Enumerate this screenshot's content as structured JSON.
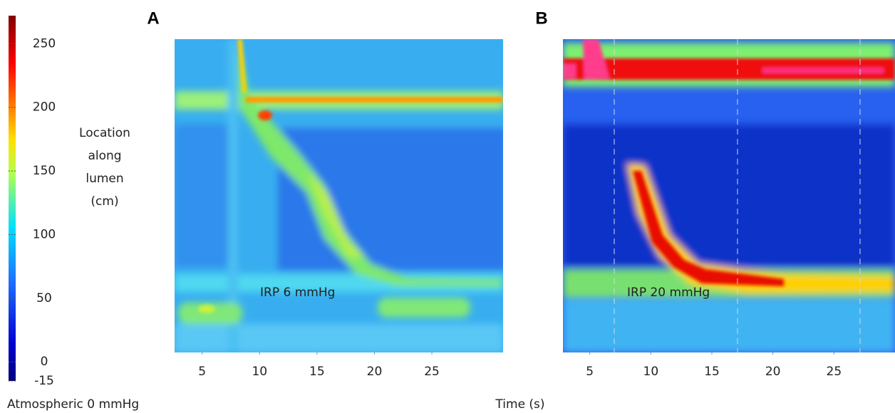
{
  "colorbar": {
    "title_lines": [
      "Location",
      "along",
      "lumen",
      "(cm)"
    ],
    "ticks": [
      -15,
      0,
      50,
      100,
      150,
      200,
      250
    ],
    "range": [
      -15,
      272
    ],
    "footer": "Atmospheric 0 mmHg"
  },
  "panels": [
    {
      "letter": "A",
      "annotation": "IRP 6 mmHg",
      "xlim": [
        2.6,
        31.2
      ],
      "xticks": [
        5,
        10,
        15,
        20,
        25
      ]
    },
    {
      "letter": "B",
      "annotation": "IRP 20 mmHg",
      "xlim": [
        2.8,
        30.0
      ],
      "xticks": [
        5,
        10,
        15,
        20,
        25
      ]
    }
  ],
  "x_label": "Time (s)"
}
